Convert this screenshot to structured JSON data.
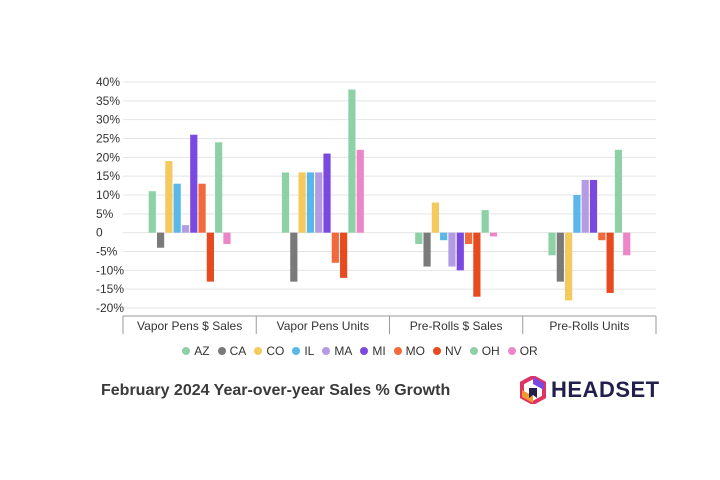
{
  "chart_data": {
    "type": "bar",
    "title": "February 2024 Year-over-year Sales % Growth",
    "categories": [
      "Vapor Pens $ Sales",
      "Vapor Pens Units",
      "Pre-Rolls $ Sales",
      "Pre-Rolls Units"
    ],
    "y_ticks": [
      "40%",
      "35%",
      "30%",
      "25%",
      "20%",
      "15%",
      "10%",
      "5%",
      "0",
      "-5%",
      "-10%",
      "-15%",
      "-20%"
    ],
    "ylim": [
      -20,
      40
    ],
    "grid": true,
    "legend_position": "bottom",
    "series": [
      {
        "name": "AZ",
        "color": "#8fd1a7",
        "values": [
          11,
          16,
          -3,
          -6
        ]
      },
      {
        "name": "CA",
        "color": "#7a7a7a",
        "values": [
          -4,
          -13,
          -9,
          -13
        ]
      },
      {
        "name": "CO",
        "color": "#f4c95d",
        "values": [
          19,
          16,
          8,
          -18
        ]
      },
      {
        "name": "IL",
        "color": "#59b8e8",
        "values": [
          13,
          16,
          -2,
          10
        ]
      },
      {
        "name": "MA",
        "color": "#b49ce4",
        "values": [
          2,
          16,
          -9,
          14
        ]
      },
      {
        "name": "MI",
        "color": "#7a49e0",
        "values": [
          26,
          21,
          -10,
          14
        ]
      },
      {
        "name": "MO",
        "color": "#f26a3b",
        "values": [
          13,
          -8,
          -3,
          -2
        ]
      },
      {
        "name": "NV",
        "color": "#e84a1f",
        "values": [
          -13,
          -12,
          -17,
          -16
        ]
      },
      {
        "name": "OH",
        "color": "#8fd1a7",
        "values": [
          24,
          38,
          6,
          22
        ]
      },
      {
        "name": "OR",
        "color": "#ec86c7",
        "values": [
          -3,
          22,
          -1,
          -6
        ]
      }
    ]
  },
  "brand": {
    "name": "HEADSET"
  }
}
